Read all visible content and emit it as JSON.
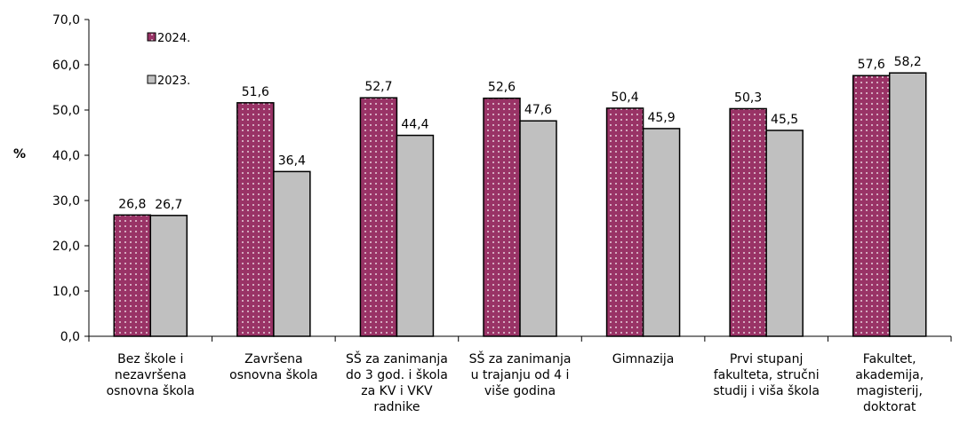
{
  "chart_data": {
    "type": "bar",
    "y_label": "%",
    "categories": [
      "Bez škole i\nnezavršena\nosnovna škola",
      "Završena\nosnovna škola",
      "SŠ za zanimanja\ndo 3 god. i škola\nza KV i VKV\nradnike",
      "SŠ za zanimanja\nu trajanju od 4 i\nviše godina",
      "Gimnazija",
      "Prvi stupanj\nfakulteta, stručni\nstudij i viša škola",
      "Fakultet,\nakademija,\nmagisterij,\ndoktorat"
    ],
    "series": [
      {
        "name": "2024.",
        "color": "#993366",
        "values": [
          26.8,
          51.6,
          52.7,
          52.6,
          50.4,
          50.3,
          57.6
        ],
        "value_labels": [
          "26,8",
          "51,6",
          "52,7",
          "52,6",
          "50,4",
          "50,3",
          "57,6"
        ]
      },
      {
        "name": "2023.",
        "color": "#c0c0c0",
        "values": [
          26.7,
          36.4,
          44.4,
          47.6,
          45.9,
          45.5,
          58.2
        ],
        "value_labels": [
          "26,7",
          "36,4",
          "44,4",
          "47,6",
          "45,9",
          "45,5",
          "58,2"
        ]
      }
    ],
    "ylim": [
      0,
      70
    ],
    "yticks": [
      {
        "value": 0,
        "label": "0,0"
      },
      {
        "value": 10,
        "label": "10,0"
      },
      {
        "value": 20,
        "label": "20,0"
      },
      {
        "value": 30,
        "label": "30,0"
      },
      {
        "value": 40,
        "label": "40,0"
      },
      {
        "value": 50,
        "label": "50,0"
      },
      {
        "value": 60,
        "label": "60,0"
      },
      {
        "value": 70,
        "label": "70,0"
      }
    ],
    "grid": false,
    "legend": "upper left"
  }
}
